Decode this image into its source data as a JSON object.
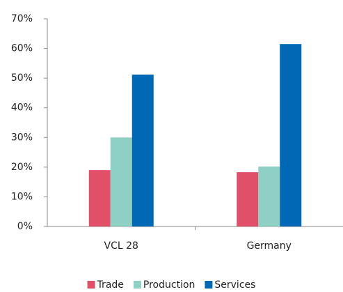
{
  "chart_data": {
    "type": "bar",
    "categories": [
      "VCL 28",
      "Germany"
    ],
    "series": [
      {
        "name": "Trade",
        "color": "#e05068",
        "values": [
          19,
          18.3
        ]
      },
      {
        "name": "Production",
        "color": "#8fcfc4",
        "values": [
          30,
          20.2
        ]
      },
      {
        "name": "Services",
        "color": "#0068b4",
        "values": [
          51.2,
          61.5
        ]
      }
    ],
    "ylim": [
      0,
      70
    ],
    "yticks": [
      {
        "value": 0,
        "label": "0%"
      },
      {
        "value": 10,
        "label": "10%"
      },
      {
        "value": 20,
        "label": "20%"
      },
      {
        "value": 30,
        "label": "30%"
      },
      {
        "value": 40,
        "label": "40%"
      },
      {
        "value": 50,
        "label": "50%"
      },
      {
        "value": 60,
        "label": "60%"
      },
      {
        "value": 70,
        "label": "70%"
      }
    ],
    "grid": false,
    "legend": "bottom"
  }
}
